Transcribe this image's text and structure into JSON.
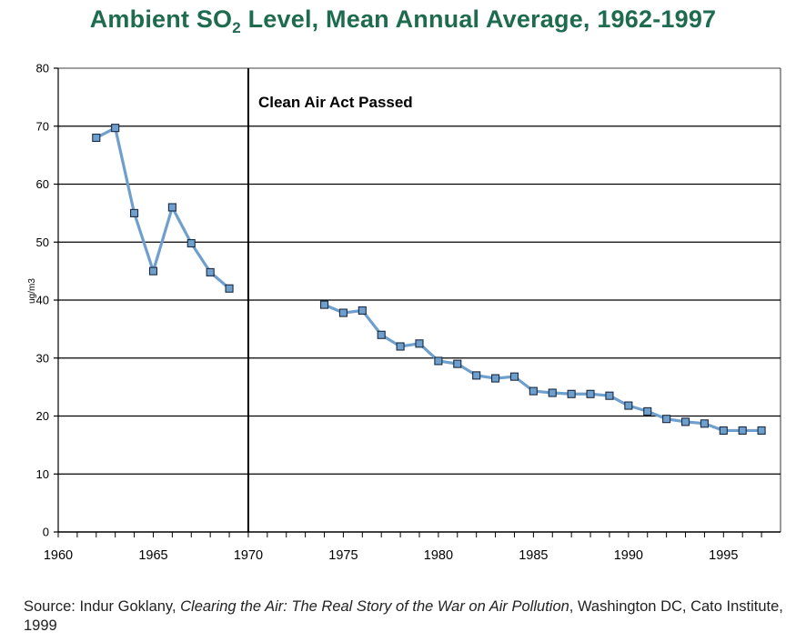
{
  "title": {
    "before": "Ambient SO",
    "subscript": "2",
    "after": " Level, Mean Annual Average, 1962-1997"
  },
  "source": {
    "prefix": "Source: Indur Goklany, ",
    "book": "Clearing the Air: The Real Story of the War on Air Pollution",
    "suffix": ", Washington DC, Cato Institute, 1999"
  },
  "colors": {
    "title": "#1e6b4f",
    "line": "#6f9fcd",
    "marker": "#6f9fcd",
    "grid": "#000000"
  },
  "chart_data": {
    "type": "line",
    "title": "Ambient SO2 Level, Mean Annual Average, 1962-1997",
    "xlabel": "",
    "ylabel": "ug/m3",
    "xlim": [
      1960,
      1998
    ],
    "ylim": [
      0,
      80
    ],
    "x_ticks": [
      1960,
      1965,
      1970,
      1975,
      1980,
      1985,
      1990,
      1995
    ],
    "y_ticks": [
      0,
      10,
      20,
      30,
      40,
      50,
      60,
      70,
      80
    ],
    "grid": "horizontal",
    "annotations": [
      {
        "x": 1970,
        "text": "Clean Air Act Passed"
      }
    ],
    "series": [
      {
        "segments": [
          {
            "x": [
              1962,
              1963,
              1964,
              1965,
              1966,
              1967,
              1968,
              1969
            ],
            "y": [
              68,
              69.7,
              55,
              45,
              56,
              49.8,
              44.8,
              42
            ]
          },
          {
            "x": [
              1974,
              1975,
              1976,
              1977,
              1978,
              1979,
              1980,
              1981,
              1982,
              1983,
              1984,
              1985,
              1986,
              1987,
              1988,
              1989,
              1990,
              1991,
              1992,
              1993,
              1994,
              1995,
              1996,
              1997
            ],
            "y": [
              39.2,
              37.8,
              38.2,
              34,
              32,
              32.5,
              29.5,
              29,
              27,
              26.5,
              26.8,
              24.3,
              24,
              23.8,
              23.8,
              23.5,
              21.8,
              20.8,
              19.5,
              19,
              18.7,
              17.5,
              17.5,
              17.5
            ]
          }
        ]
      }
    ]
  }
}
